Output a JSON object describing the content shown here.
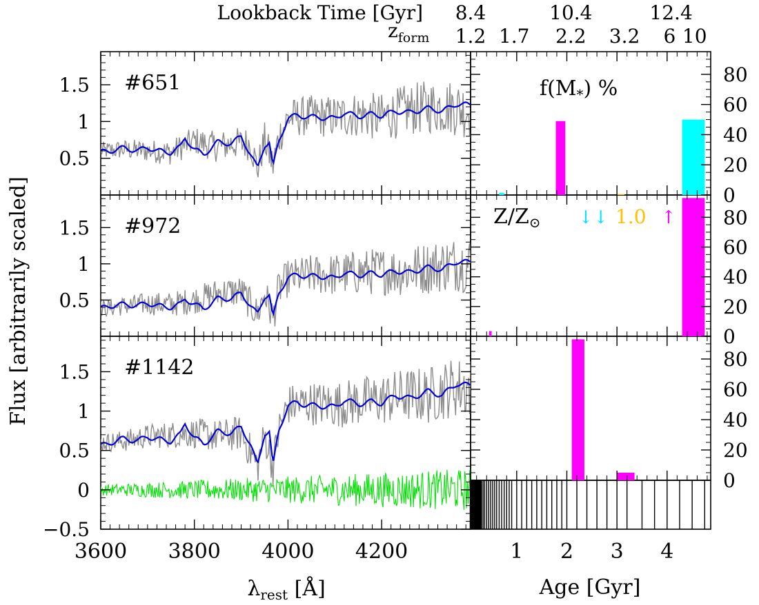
{
  "labels": {
    "y_label": "Flux [arbitrarily scaled]",
    "x_label_left": "λ",
    "x_label_left_sub": "rest",
    "x_label_left_unit": "[Å]",
    "x_label_right": "Age [Gyr]",
    "top_lookback_label": "Lookback Time [Gyr]",
    "top_zform_label": "z",
    "top_zform_sub": "form",
    "fm_label": "f(M",
    "fm_label_sub": "*",
    "fm_label_end": ") %",
    "metal_label": "Z/Z",
    "metal_sun": "⊙",
    "metal_low": "↓↓",
    "metal_mid": "1.0",
    "metal_high": "↑"
  },
  "colors": {
    "observed": "#8c8c8c",
    "model": "#0000dd",
    "residual": "#00e000",
    "cyan": "#00ffff",
    "orange": "#ffc000",
    "magenta": "#ff00ff"
  },
  "chart_data": [
    {
      "type": "line",
      "panel": "spectrum",
      "id": "#651",
      "xlim": [
        3600,
        4390
      ],
      "ylim": [
        0,
        1.95
      ],
      "x_ticks": [
        3600,
        3800,
        4000,
        4200
      ],
      "x_tick_labels": [
        "3600",
        "3800",
        "4000",
        "4200"
      ],
      "y_ticks": [
        0.5,
        1,
        1.5
      ],
      "y_tick_labels": [
        "0.5",
        "1",
        "1.5"
      ],
      "series": [
        {
          "color": "observed",
          "x": [
            3600,
            3650,
            3700,
            3750,
            3800,
            3850,
            3880,
            3920,
            3935,
            3950,
            3968,
            3980,
            4000,
            4050,
            4100,
            4150,
            4200,
            4250,
            4300,
            4350,
            4390
          ],
          "y": [
            0.6,
            0.62,
            0.6,
            0.58,
            0.74,
            0.65,
            0.7,
            0.7,
            0.35,
            0.75,
            0.4,
            0.78,
            1.05,
            1.08,
            1.06,
            1.1,
            1.05,
            1.15,
            1.2,
            1.2,
            1.15
          ]
        },
        {
          "color": "model",
          "x": [
            3600,
            3620,
            3650,
            3680,
            3700,
            3720,
            3750,
            3770,
            3780,
            3800,
            3820,
            3850,
            3880,
            3900,
            3920,
            3935,
            3950,
            3960,
            3968,
            3980,
            4000,
            4020,
            4050,
            4080,
            4100,
            4120,
            4150,
            4180,
            4200,
            4230,
            4260,
            4300,
            4330,
            4360,
            4390
          ],
          "y": [
            0.58,
            0.6,
            0.64,
            0.6,
            0.65,
            0.6,
            0.58,
            0.65,
            0.78,
            0.62,
            0.55,
            0.72,
            0.7,
            0.8,
            0.55,
            0.36,
            0.68,
            0.72,
            0.38,
            0.72,
            1.05,
            1.08,
            1.06,
            1.05,
            1.04,
            1.12,
            1.07,
            1.1,
            1.08,
            1.14,
            1.12,
            1.18,
            1.14,
            1.24,
            1.22
          ]
        }
      ]
    },
    {
      "type": "line",
      "panel": "spectrum",
      "id": "#972",
      "xlim": [
        3600,
        4390
      ],
      "ylim": [
        0,
        1.95
      ],
      "x_ticks": [
        3600,
        3800,
        4000,
        4200
      ],
      "x_tick_labels": [
        "3600",
        "3800",
        "4000",
        "4200"
      ],
      "y_ticks": [
        0.5,
        1,
        1.5
      ],
      "y_tick_labels": [
        "0.5",
        "1",
        "1.5"
      ],
      "series": [
        {
          "color": "observed",
          "x": [
            3600,
            3650,
            3700,
            3750,
            3800,
            3850,
            3900,
            3935,
            3950,
            3968,
            3980,
            4000,
            4050,
            4100,
            4150,
            4200,
            4250,
            4300,
            4350,
            4390
          ],
          "y": [
            0.38,
            0.42,
            0.45,
            0.44,
            0.5,
            0.6,
            0.62,
            0.3,
            0.6,
            0.25,
            0.65,
            0.8,
            0.85,
            0.85,
            0.88,
            0.9,
            0.9,
            0.95,
            1.0,
            1.0
          ]
        },
        {
          "color": "model",
          "x": [
            3600,
            3620,
            3650,
            3680,
            3700,
            3720,
            3750,
            3770,
            3780,
            3800,
            3820,
            3850,
            3880,
            3900,
            3920,
            3935,
            3950,
            3960,
            3968,
            3980,
            4000,
            4020,
            4050,
            4080,
            4100,
            4120,
            4150,
            4180,
            4200,
            4230,
            4260,
            4300,
            4330,
            4360,
            4390
          ],
          "y": [
            0.38,
            0.42,
            0.44,
            0.42,
            0.46,
            0.42,
            0.4,
            0.44,
            0.52,
            0.44,
            0.38,
            0.52,
            0.52,
            0.6,
            0.42,
            0.3,
            0.55,
            0.58,
            0.25,
            0.58,
            0.82,
            0.84,
            0.83,
            0.82,
            0.8,
            0.88,
            0.84,
            0.87,
            0.85,
            0.9,
            0.88,
            0.95,
            0.92,
            1.03,
            1.02
          ]
        }
      ]
    },
    {
      "type": "line",
      "panel": "spectrum",
      "id": "#1142",
      "xlim": [
        3600,
        4390
      ],
      "ylim": [
        -0.5,
        1.95
      ],
      "x_ticks": [
        3600,
        3800,
        4000,
        4200
      ],
      "x_tick_labels": [
        "3600",
        "3800",
        "4000",
        "4200"
      ],
      "y_ticks": [
        -0.5,
        0,
        0.5,
        1,
        1.5
      ],
      "y_tick_labels": [
        "−0.5",
        "0",
        "0.5",
        "1",
        "1.5"
      ],
      "series": [
        {
          "color": "observed",
          "x": [
            3600,
            3650,
            3700,
            3750,
            3800,
            3850,
            3900,
            3935,
            3950,
            3968,
            3980,
            4000,
            4050,
            4100,
            4150,
            4200,
            4250,
            4300,
            4350,
            4390
          ],
          "y": [
            0.6,
            0.62,
            0.68,
            0.7,
            0.72,
            0.68,
            0.72,
            0.3,
            0.7,
            0.3,
            0.75,
            1.08,
            1.1,
            1.08,
            1.12,
            1.15,
            1.2,
            1.2,
            1.3,
            1.3
          ]
        },
        {
          "color": "model",
          "x": [
            3600,
            3620,
            3650,
            3680,
            3700,
            3720,
            3750,
            3770,
            3780,
            3800,
            3820,
            3850,
            3880,
            3900,
            3920,
            3935,
            3950,
            3960,
            3968,
            3980,
            4000,
            4020,
            4050,
            4080,
            4100,
            4120,
            4150,
            4180,
            4200,
            4230,
            4260,
            4300,
            4330,
            4360,
            4390
          ],
          "y": [
            0.55,
            0.6,
            0.65,
            0.62,
            0.68,
            0.64,
            0.62,
            0.7,
            0.85,
            0.66,
            0.58,
            0.74,
            0.72,
            0.8,
            0.58,
            0.3,
            0.72,
            0.75,
            0.3,
            0.74,
            1.08,
            1.1,
            1.07,
            1.06,
            1.05,
            1.14,
            1.09,
            1.12,
            1.1,
            1.2,
            1.16,
            1.25,
            1.2,
            1.35,
            1.32
          ]
        },
        {
          "color": "residual",
          "x": [
            3600,
            3700,
            3800,
            3900,
            4000,
            4100,
            4200,
            4300,
            4390
          ],
          "y": [
            0.0,
            0.0,
            0.0,
            0.0,
            0.0,
            0.0,
            0.0,
            0.0,
            0.0
          ]
        }
      ]
    },
    {
      "type": "bar",
      "panel": "sfh",
      "xlim": [
        0.08,
        4.87
      ],
      "ylim": [
        0,
        95
      ],
      "x_ticks": [
        1,
        2,
        3,
        4
      ],
      "x_tick_labels": [
        "1",
        "2",
        "3",
        "4"
      ],
      "y_ticks": [
        0,
        20,
        40,
        60,
        80
      ],
      "y_tick_labels": [
        "0",
        "20",
        "40",
        "60",
        "80"
      ],
      "bars": [
        {
          "x0": 0.65,
          "x1": 0.75,
          "value": 1.5,
          "color": "cyan"
        },
        {
          "x0": 1.78,
          "x1": 1.97,
          "value": 49,
          "color": "magenta"
        },
        {
          "x0": 3.0,
          "x1": 3.15,
          "value": 0.6,
          "color": "orange"
        },
        {
          "x0": 4.3,
          "x1": 4.75,
          "value": 50,
          "color": "cyan"
        }
      ]
    },
    {
      "type": "bar",
      "panel": "sfh",
      "xlim": [
        0.08,
        4.87
      ],
      "ylim": [
        0,
        95
      ],
      "x_ticks": [
        1,
        2,
        3,
        4
      ],
      "x_tick_labels": [
        "1",
        "2",
        "3",
        "4"
      ],
      "y_ticks": [
        0,
        20,
        40,
        60,
        80
      ],
      "y_tick_labels": [
        "0",
        "20",
        "40",
        "60",
        "80"
      ],
      "bars": [
        {
          "x0": 0.45,
          "x1": 0.5,
          "value": 3.5,
          "color": "magenta"
        },
        {
          "x0": 4.3,
          "x1": 4.75,
          "value": 93,
          "color": "magenta"
        }
      ]
    },
    {
      "type": "bar",
      "panel": "sfh",
      "xlim": [
        0.08,
        4.87
      ],
      "ylim": [
        0,
        95
      ],
      "x_ticks": [
        1,
        2,
        3,
        4
      ],
      "x_tick_labels": [
        "1",
        "2",
        "3",
        "4"
      ],
      "y_ticks": [
        0,
        20,
        40,
        60,
        80
      ],
      "y_tick_labels": [
        "0",
        "20",
        "40",
        "60",
        "80"
      ],
      "bars": [
        {
          "x0": 2.1,
          "x1": 2.35,
          "value": 93,
          "color": "magenta"
        },
        {
          "x0": 3.0,
          "x1": 3.35,
          "value": 5,
          "color": "magenta"
        }
      ]
    }
  ],
  "top_axis": {
    "lookback_ticks": [
      {
        "age": 0.08,
        "label": "8.4"
      },
      {
        "age": 2.08,
        "label": "10.4"
      },
      {
        "age": 4.08,
        "label": "12.4"
      }
    ],
    "zform_ticks": [
      {
        "age": 0.08,
        "label": "1.2"
      },
      {
        "age": 0.95,
        "label": "1.7"
      },
      {
        "age": 2.08,
        "label": "2.2"
      },
      {
        "age": 3.15,
        "label": "3.2"
      },
      {
        "age": 4.05,
        "label": "6"
      },
      {
        "age": 4.55,
        "label": "10"
      }
    ]
  },
  "age_grid": {
    "ages": [
      0.08,
      0.1,
      0.12,
      0.14,
      0.16,
      0.18,
      0.2,
      0.22,
      0.25,
      0.28,
      0.3,
      0.33,
      0.36,
      0.4,
      0.44,
      0.48,
      0.52,
      0.56,
      0.6,
      0.65,
      0.7,
      0.75,
      0.8,
      0.85,
      0.9,
      1.0,
      1.1,
      1.2,
      1.3,
      1.4,
      1.5,
      1.6,
      1.7,
      1.8,
      1.9,
      2.0,
      2.2,
      2.4,
      2.6,
      2.8,
      3.0,
      3.2,
      3.5,
      3.75,
      4.0,
      4.25,
      4.5,
      4.75
    ]
  }
}
